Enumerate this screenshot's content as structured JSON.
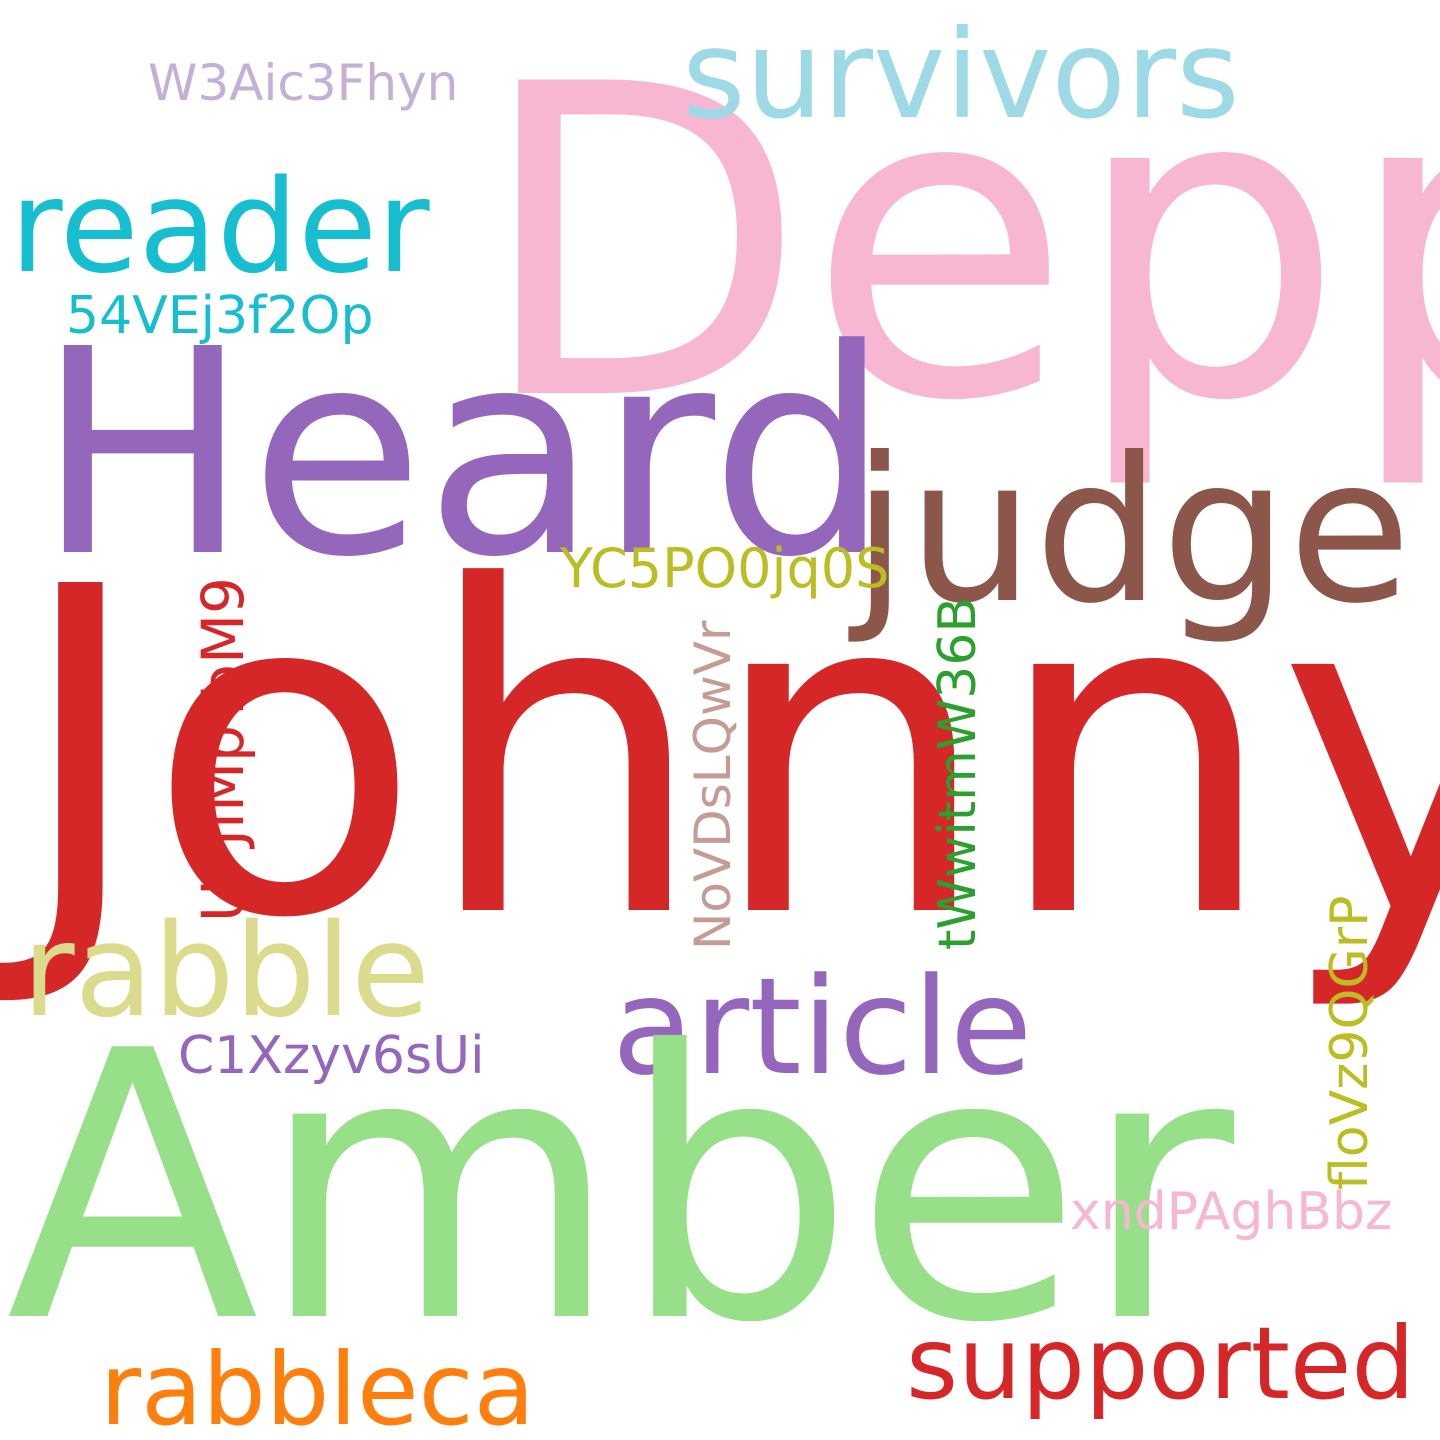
{
  "words": [
    {
      "key": "depp",
      "text": "Depp",
      "color": "#f7b6d2"
    },
    {
      "key": "survivors",
      "text": "survivors",
      "color": "#9edae5"
    },
    {
      "key": "w3aic",
      "text": "W3Aic3Fhyn",
      "color": "#c5b0d5"
    },
    {
      "key": "reader",
      "text": "reader",
      "color": "#17becf"
    },
    {
      "key": "54vej",
      "text": "54VEj3f2Op",
      "color": "#17becf"
    },
    {
      "key": "heard",
      "text": "Heard",
      "color": "#9467bd"
    },
    {
      "key": "judge",
      "text": "judge",
      "color": "#8c564b"
    },
    {
      "key": "yc5p",
      "text": "YC5PO0jq0S",
      "color": "#bcbd22"
    },
    {
      "key": "johnny",
      "text": "Johnny",
      "color": "#d62728"
    },
    {
      "key": "rabble",
      "text": "rabble",
      "color": "#dbdb8d"
    },
    {
      "key": "article",
      "text": "article",
      "color": "#9467bd"
    },
    {
      "key": "c1xzy",
      "text": "C1Xzyv6sUi",
      "color": "#9467bd"
    },
    {
      "key": "amber",
      "text": "Amber",
      "color": "#98df8a"
    },
    {
      "key": "xndp",
      "text": "xndPAghBbz",
      "color": "#f7b6d2"
    },
    {
      "key": "supported",
      "text": "supported",
      "color": "#d62728"
    },
    {
      "key": "rabbleca",
      "text": "rabbleca",
      "color": "#ff7f0e"
    },
    {
      "key": "ufji",
      "text": "UFJIMpToM9",
      "color": "#d62728",
      "vertical": true
    },
    {
      "key": "novd",
      "text": "NoVDsLQwVr",
      "color": "#c49c94",
      "vertical": true
    },
    {
      "key": "twwi",
      "text": "tWwitmW36B",
      "color": "#2ca02c",
      "vertical": true
    },
    {
      "key": "flov",
      "text": "floVz9QGrP",
      "color": "#bcbd22",
      "vertical": true
    }
  ]
}
